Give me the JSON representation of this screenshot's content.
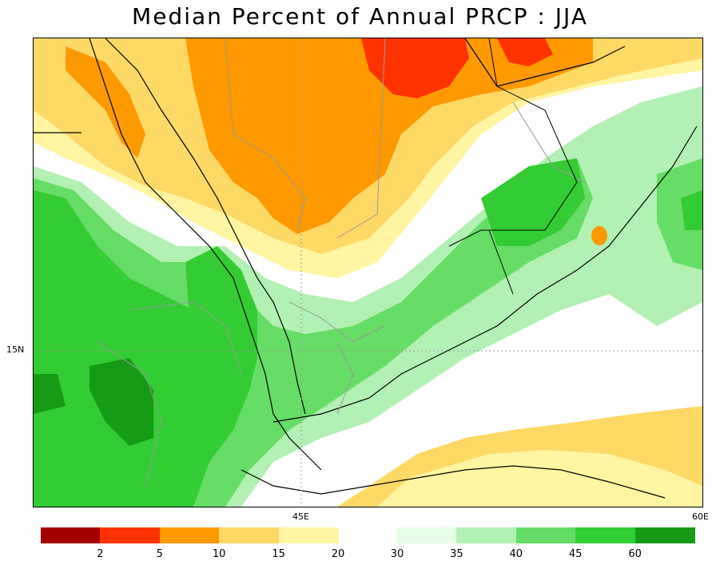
{
  "title": "Median Percent of Annual PRCP  :  JJA",
  "axes": {
    "lat_label": "15N",
    "lon_labels": [
      "45E",
      "60E"
    ]
  },
  "legend": {
    "levels": [
      "2",
      "5",
      "10",
      "15",
      "20",
      "30",
      "35",
      "40",
      "45",
      "60"
    ],
    "colors": [
      "#a50000",
      "#ff3300",
      "#ff9900",
      "#ffd966",
      "#fff5a3",
      "#e6ffe6",
      "#b3f0b3",
      "#66dd66",
      "#33cc33",
      "#159b15"
    ]
  },
  "palette": {
    "dark_red": "#a50000",
    "red": "#ff3300",
    "orange": "#ff9900",
    "light_orange": "#ffd966",
    "pale_yellow": "#fff5a3",
    "pale_green": "#e6ffe6",
    "light_green": "#b3f0b3",
    "green": "#66dd66",
    "mid_green": "#33cc33",
    "dark_green": "#159b15"
  }
}
